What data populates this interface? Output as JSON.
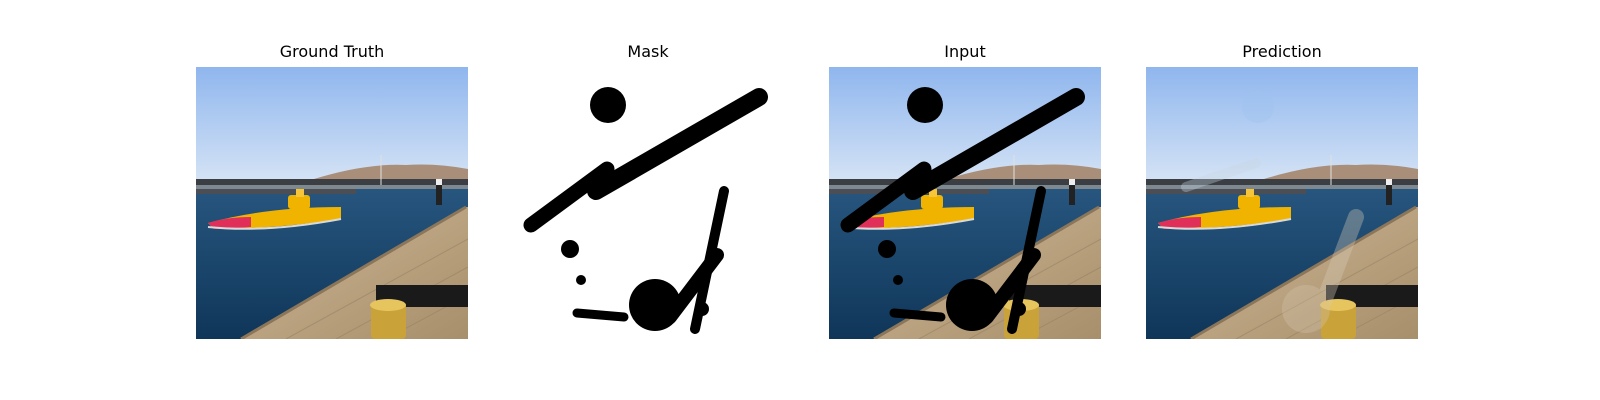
{
  "panels": [
    {
      "id": "ground-truth",
      "title": "Ground Truth"
    },
    {
      "id": "mask",
      "title": "Mask"
    },
    {
      "id": "input",
      "title": "Input"
    },
    {
      "id": "prediction",
      "title": "Prediction"
    }
  ],
  "colors": {
    "sky_top": "#8fb6ee",
    "sky_bottom": "#cfe0f4",
    "water": "#1d4e7a",
    "dock": "#bfa886",
    "boat_yellow": "#f0b400",
    "boat_red": "#e0305a",
    "mask_black": "#000000"
  }
}
